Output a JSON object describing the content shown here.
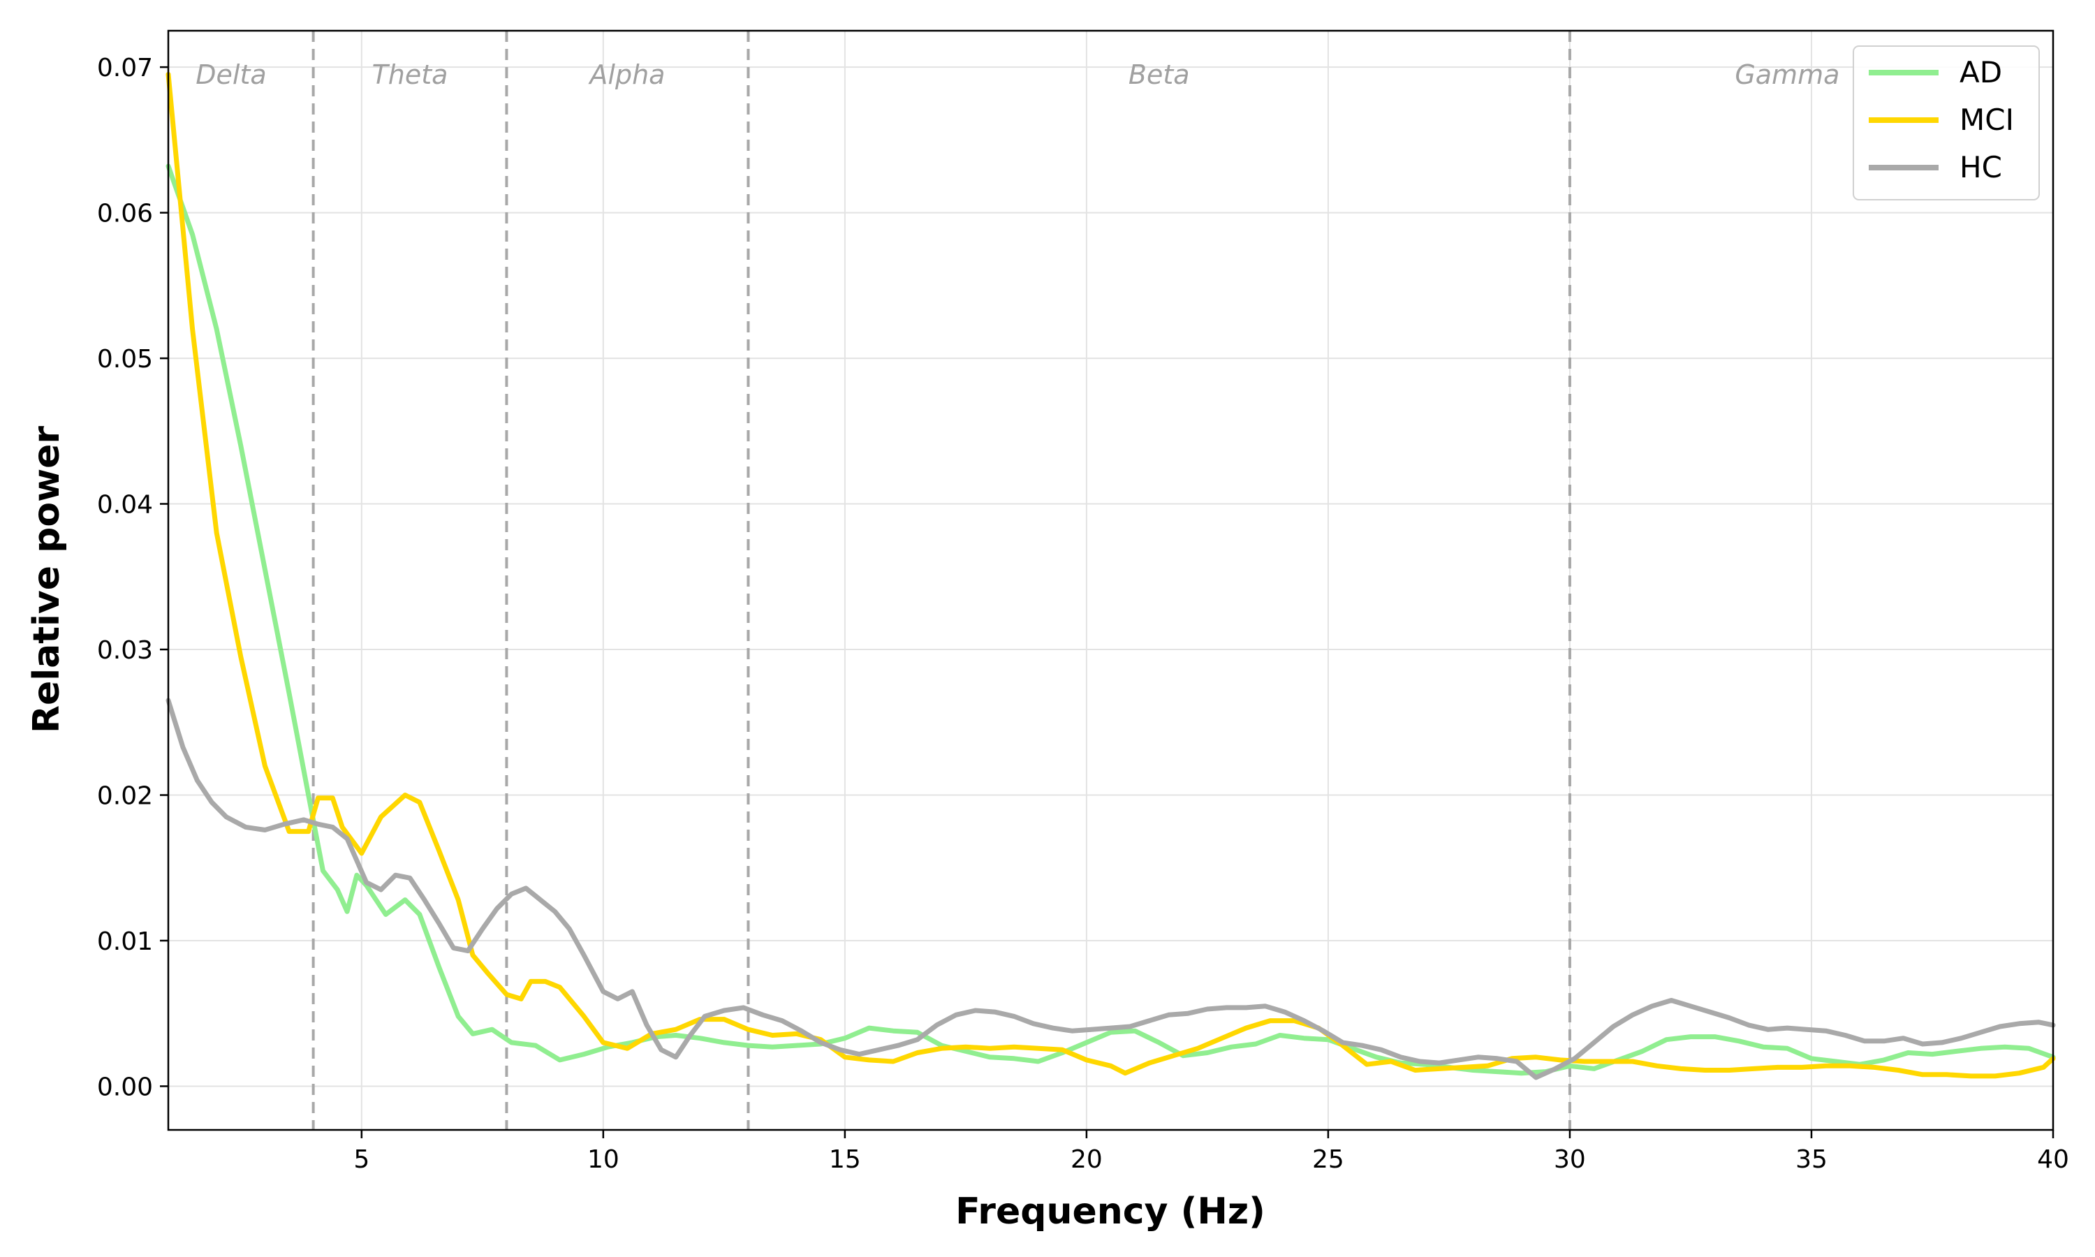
{
  "chart_data": {
    "type": "line",
    "title": "",
    "xlabel": "Frequency (Hz)",
    "ylabel": "Relative power",
    "xlim": [
      1,
      40
    ],
    "ylim": [
      -0.003,
      0.0725
    ],
    "x_ticks": [
      5,
      10,
      15,
      20,
      25,
      30,
      35,
      40
    ],
    "x_tick_labels": [
      "5",
      "10",
      "15",
      "20",
      "25",
      "30",
      "35",
      "40"
    ],
    "y_ticks": [
      0.0,
      0.01,
      0.02,
      0.03,
      0.04,
      0.05,
      0.06,
      0.07
    ],
    "y_tick_labels": [
      "0.00",
      "0.01",
      "0.02",
      "0.03",
      "0.04",
      "0.05",
      "0.06",
      "0.07"
    ],
    "grid": true,
    "legend": "top-right",
    "band_boundaries": [
      4,
      8,
      13,
      30
    ],
    "bands": [
      {
        "label": "Delta",
        "x": 2.3
      },
      {
        "label": "Theta",
        "x": 6.0
      },
      {
        "label": "Alpha",
        "x": 10.5
      },
      {
        "label": "Beta",
        "x": 21.5
      },
      {
        "label": "Gamma",
        "x": 34.5
      }
    ],
    "series": [
      {
        "name": "AD",
        "color": "#90ee90",
        "x": [
          1.0,
          1.5,
          2.0,
          2.5,
          3.0,
          3.5,
          3.9,
          4.2,
          4.5,
          4.7,
          4.9,
          5.1,
          5.5,
          5.9,
          6.2,
          6.6,
          7.0,
          7.3,
          7.7,
          8.1,
          8.6,
          9.1,
          9.6,
          10.1,
          10.6,
          11.1,
          11.5,
          12.0,
          12.5,
          13.0,
          13.5,
          14.0,
          14.5,
          15.0,
          15.5,
          16.0,
          16.5,
          17.0,
          17.5,
          18.0,
          18.5,
          19.0,
          19.5,
          20.0,
          20.5,
          21.0,
          21.5,
          22.0,
          22.5,
          23.0,
          23.5,
          24.0,
          24.5,
          25.0,
          25.5,
          26.0,
          26.5,
          27.0,
          27.5,
          28.0,
          28.5,
          29.0,
          29.5,
          30.0,
          30.5,
          31.0,
          31.5,
          32.0,
          32.5,
          33.0,
          33.5,
          34.0,
          34.5,
          35.0,
          35.5,
          36.0,
          36.5,
          37.0,
          37.5,
          38.0,
          38.5,
          39.0,
          39.5,
          40.0
        ],
        "values": [
          0.0632,
          0.0585,
          0.052,
          0.044,
          0.0355,
          0.027,
          0.02,
          0.0148,
          0.0135,
          0.012,
          0.0145,
          0.0138,
          0.0118,
          0.0128,
          0.0118,
          0.0082,
          0.0048,
          0.0036,
          0.0039,
          0.003,
          0.0028,
          0.0018,
          0.0022,
          0.0027,
          0.003,
          0.0034,
          0.0035,
          0.0033,
          0.003,
          0.0028,
          0.0027,
          0.0028,
          0.0029,
          0.0033,
          0.004,
          0.0038,
          0.0037,
          0.0028,
          0.0024,
          0.002,
          0.0019,
          0.0017,
          0.0023,
          0.003,
          0.0037,
          0.0038,
          0.003,
          0.0021,
          0.0023,
          0.0027,
          0.0029,
          0.0035,
          0.0033,
          0.0032,
          0.0026,
          0.002,
          0.0016,
          0.0015,
          0.0013,
          0.0011,
          0.001,
          0.0009,
          0.001,
          0.0014,
          0.0012,
          0.0018,
          0.0024,
          0.0032,
          0.0034,
          0.0034,
          0.0031,
          0.0027,
          0.0026,
          0.0019,
          0.0017,
          0.0015,
          0.0018,
          0.0023,
          0.0022,
          0.0024,
          0.0026,
          0.0027,
          0.0026,
          0.002
        ]
      },
      {
        "name": "MCI",
        "color": "#ffd700",
        "x": [
          1.0,
          1.5,
          2.0,
          2.5,
          3.0,
          3.5,
          3.9,
          4.1,
          4.4,
          4.6,
          5.0,
          5.4,
          5.9,
          6.2,
          6.6,
          7.0,
          7.3,
          7.6,
          8.0,
          8.3,
          8.5,
          8.8,
          9.1,
          9.6,
          10.0,
          10.5,
          11.0,
          11.5,
          12.0,
          12.5,
          13.0,
          13.5,
          14.0,
          14.5,
          15.0,
          15.5,
          16.0,
          16.5,
          17.0,
          17.5,
          18.0,
          18.5,
          19.0,
          19.5,
          20.0,
          20.5,
          20.8,
          21.3,
          21.8,
          22.3,
          22.8,
          23.3,
          23.8,
          24.3,
          24.8,
          25.3,
          25.8,
          26.3,
          26.8,
          27.3,
          27.8,
          28.3,
          28.8,
          29.3,
          29.8,
          30.3,
          30.8,
          31.3,
          31.8,
          32.3,
          32.8,
          33.3,
          33.8,
          34.3,
          34.8,
          35.3,
          35.8,
          36.3,
          36.8,
          37.3,
          37.8,
          38.3,
          38.8,
          39.3,
          39.8,
          40.0
        ],
        "values": [
          0.0695,
          0.052,
          0.038,
          0.0295,
          0.022,
          0.0175,
          0.0175,
          0.0198,
          0.0198,
          0.0178,
          0.016,
          0.0185,
          0.02,
          0.0195,
          0.0162,
          0.0128,
          0.009,
          0.0078,
          0.0063,
          0.006,
          0.0072,
          0.0072,
          0.0068,
          0.0048,
          0.003,
          0.0026,
          0.0036,
          0.0039,
          0.0046,
          0.0046,
          0.0039,
          0.0035,
          0.0036,
          0.0032,
          0.002,
          0.0018,
          0.0017,
          0.0023,
          0.0026,
          0.0027,
          0.0026,
          0.0027,
          0.0026,
          0.0025,
          0.0018,
          0.0014,
          0.0009,
          0.0016,
          0.0021,
          0.0026,
          0.0033,
          0.004,
          0.0045,
          0.0045,
          0.004,
          0.0028,
          0.0015,
          0.0017,
          0.0011,
          0.0012,
          0.0013,
          0.0014,
          0.0019,
          0.002,
          0.0018,
          0.0017,
          0.0017,
          0.0017,
          0.0014,
          0.0012,
          0.0011,
          0.0011,
          0.0012,
          0.0013,
          0.0013,
          0.0014,
          0.0014,
          0.0013,
          0.0011,
          0.0008,
          0.0008,
          0.0007,
          0.0007,
          0.0009,
          0.0013,
          0.0019
        ]
      },
      {
        "name": "HC",
        "color": "#a9a9a9",
        "x": [
          1.0,
          1.3,
          1.6,
          1.9,
          2.2,
          2.6,
          3.0,
          3.4,
          3.8,
          4.1,
          4.4,
          4.7,
          5.1,
          5.4,
          5.7,
          6.0,
          6.3,
          6.6,
          6.9,
          7.2,
          7.5,
          7.8,
          8.1,
          8.4,
          8.7,
          9.0,
          9.3,
          9.6,
          10.0,
          10.3,
          10.6,
          10.9,
          11.2,
          11.5,
          11.8,
          12.1,
          12.5,
          12.9,
          13.3,
          13.7,
          14.1,
          14.5,
          14.9,
          15.3,
          15.7,
          16.1,
          16.5,
          16.9,
          17.3,
          17.7,
          18.1,
          18.5,
          18.9,
          19.3,
          19.7,
          20.1,
          20.5,
          20.9,
          21.3,
          21.7,
          22.1,
          22.5,
          22.9,
          23.3,
          23.7,
          24.1,
          24.5,
          24.9,
          25.3,
          25.7,
          26.1,
          26.5,
          26.9,
          27.3,
          27.7,
          28.1,
          28.5,
          28.9,
          29.3,
          29.7,
          30.1,
          30.5,
          30.9,
          31.3,
          31.7,
          32.1,
          32.5,
          32.9,
          33.3,
          33.7,
          34.1,
          34.5,
          34.9,
          35.3,
          35.7,
          36.1,
          36.5,
          36.9,
          37.3,
          37.7,
          38.1,
          38.5,
          38.9,
          39.3,
          39.7,
          40.0
        ],
        "values": [
          0.0265,
          0.0233,
          0.021,
          0.0195,
          0.0185,
          0.0178,
          0.0176,
          0.018,
          0.0183,
          0.018,
          0.0178,
          0.017,
          0.014,
          0.0135,
          0.0145,
          0.0143,
          0.0128,
          0.0112,
          0.0095,
          0.0093,
          0.0108,
          0.0122,
          0.0132,
          0.0136,
          0.0128,
          0.012,
          0.0108,
          0.009,
          0.0065,
          0.006,
          0.0065,
          0.0042,
          0.0025,
          0.002,
          0.0035,
          0.0048,
          0.0052,
          0.0054,
          0.0049,
          0.0045,
          0.0038,
          0.003,
          0.0025,
          0.0022,
          0.0025,
          0.0028,
          0.0032,
          0.0042,
          0.0049,
          0.0052,
          0.0051,
          0.0048,
          0.0043,
          0.004,
          0.0038,
          0.0039,
          0.004,
          0.0041,
          0.0045,
          0.0049,
          0.005,
          0.0053,
          0.0054,
          0.0054,
          0.0055,
          0.0051,
          0.0045,
          0.0038,
          0.003,
          0.0028,
          0.0025,
          0.002,
          0.0017,
          0.0016,
          0.0018,
          0.002,
          0.0019,
          0.0017,
          0.0006,
          0.0012,
          0.0019,
          0.003,
          0.0041,
          0.0049,
          0.0055,
          0.0059,
          0.0055,
          0.0051,
          0.0047,
          0.0042,
          0.0039,
          0.004,
          0.0039,
          0.0038,
          0.0035,
          0.0031,
          0.0031,
          0.0033,
          0.0029,
          0.003,
          0.0033,
          0.0037,
          0.0041,
          0.0043,
          0.0044,
          0.0042
        ]
      }
    ]
  }
}
